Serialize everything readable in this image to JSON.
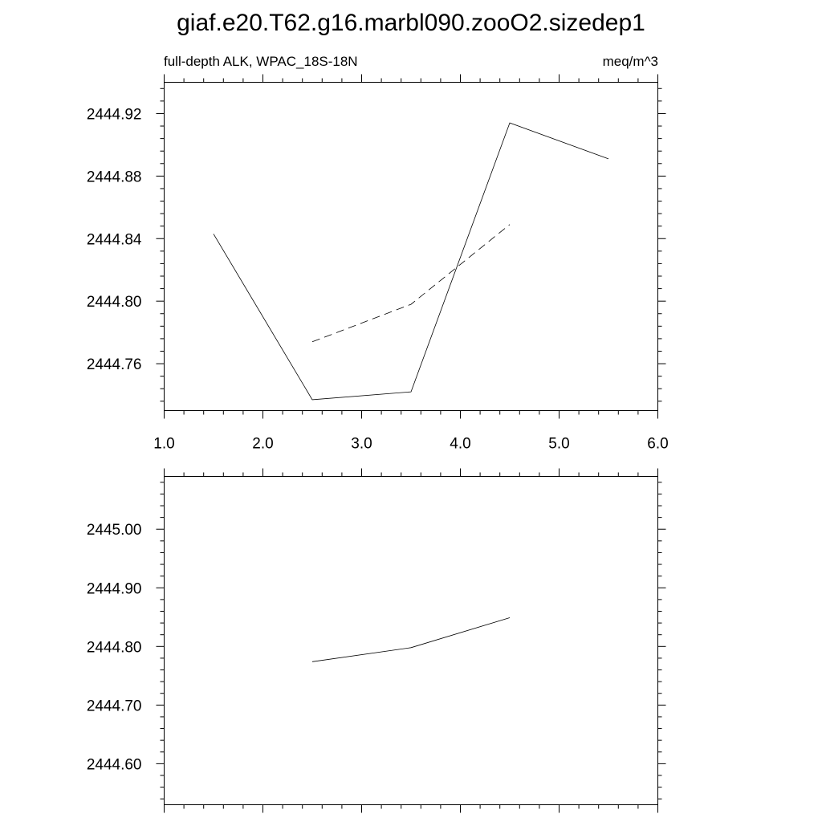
{
  "title": "giaf.e20.T62.g16.marbl090.zooO2.sizedep1",
  "chart_data": [
    {
      "type": "line",
      "subtitle_left": "full-depth ALK, WPAC_18S-18N",
      "subtitle_right": "meq/m^3",
      "xlim": [
        1.0,
        6.0
      ],
      "ylim": [
        2444.73,
        2444.94
      ],
      "x_ticks": [
        1.0,
        2.0,
        3.0,
        4.0,
        5.0,
        6.0
      ],
      "x_tick_labels": [
        "1.0",
        "2.0",
        "3.0",
        "4.0",
        "5.0",
        "6.0"
      ],
      "y_ticks": [
        2444.76,
        2444.8,
        2444.84,
        2444.88,
        2444.92
      ],
      "y_tick_labels": [
        "2444.76",
        "2444.80",
        "2444.84",
        "2444.88",
        "2444.92"
      ],
      "grid": false,
      "series": [
        {
          "style": "solid",
          "x": [
            1.5,
            2.5,
            3.5,
            4.5,
            5.5
          ],
          "y": [
            2444.843,
            2444.737,
            2444.742,
            2444.914,
            2444.891
          ]
        },
        {
          "style": "dashed",
          "x": [
            2.5,
            3.5,
            4.5
          ],
          "y": [
            2444.774,
            2444.798,
            2444.849
          ]
        }
      ]
    },
    {
      "type": "line",
      "xlim": [
        1.0,
        6.0
      ],
      "ylim": [
        2444.53,
        2445.09
      ],
      "x_ticks": [
        1.0,
        2.0,
        3.0,
        4.0,
        5.0,
        6.0
      ],
      "y_ticks": [
        2444.6,
        2444.7,
        2444.8,
        2444.9,
        2445.0
      ],
      "y_tick_labels": [
        "2444.60",
        "2444.70",
        "2444.80",
        "2444.90",
        "2445.00"
      ],
      "grid": false,
      "series": [
        {
          "style": "solid",
          "x": [
            2.5,
            3.5,
            4.5
          ],
          "y": [
            2444.774,
            2444.798,
            2444.849
          ]
        }
      ]
    }
  ]
}
